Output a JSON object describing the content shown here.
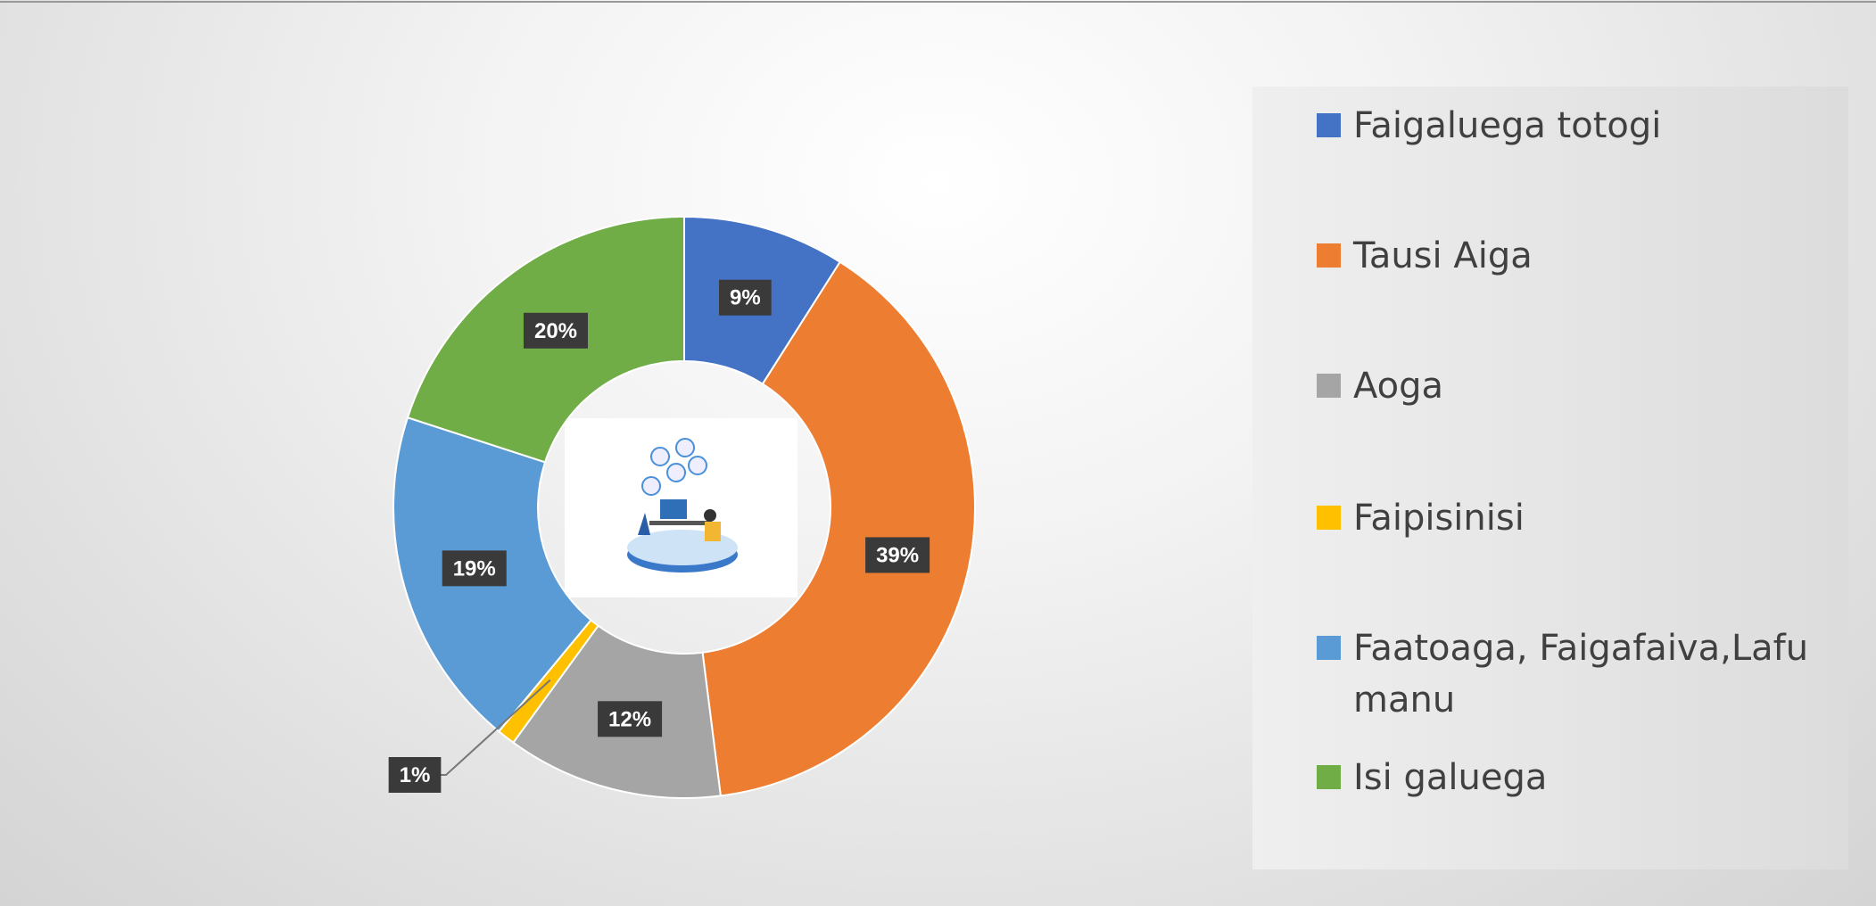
{
  "chart_data": {
    "type": "donut",
    "categories": [
      "Faigaluega totogi",
      "Tausi Aiga",
      "Aoga",
      "Faipisinisi",
      "Faatoaga, Faigafaiva,Lafu manu",
      "Isi galuega"
    ],
    "values": [
      9,
      39,
      12,
      1,
      19,
      20
    ],
    "value_labels": [
      "9%",
      "39%",
      "12%",
      "1%",
      "19%",
      "20%"
    ],
    "colors": [
      "#4472c4",
      "#ed7d31",
      "#a5a5a5",
      "#ffc000",
      "#5b9bd5",
      "#70ad47"
    ],
    "legend": "right"
  }
}
